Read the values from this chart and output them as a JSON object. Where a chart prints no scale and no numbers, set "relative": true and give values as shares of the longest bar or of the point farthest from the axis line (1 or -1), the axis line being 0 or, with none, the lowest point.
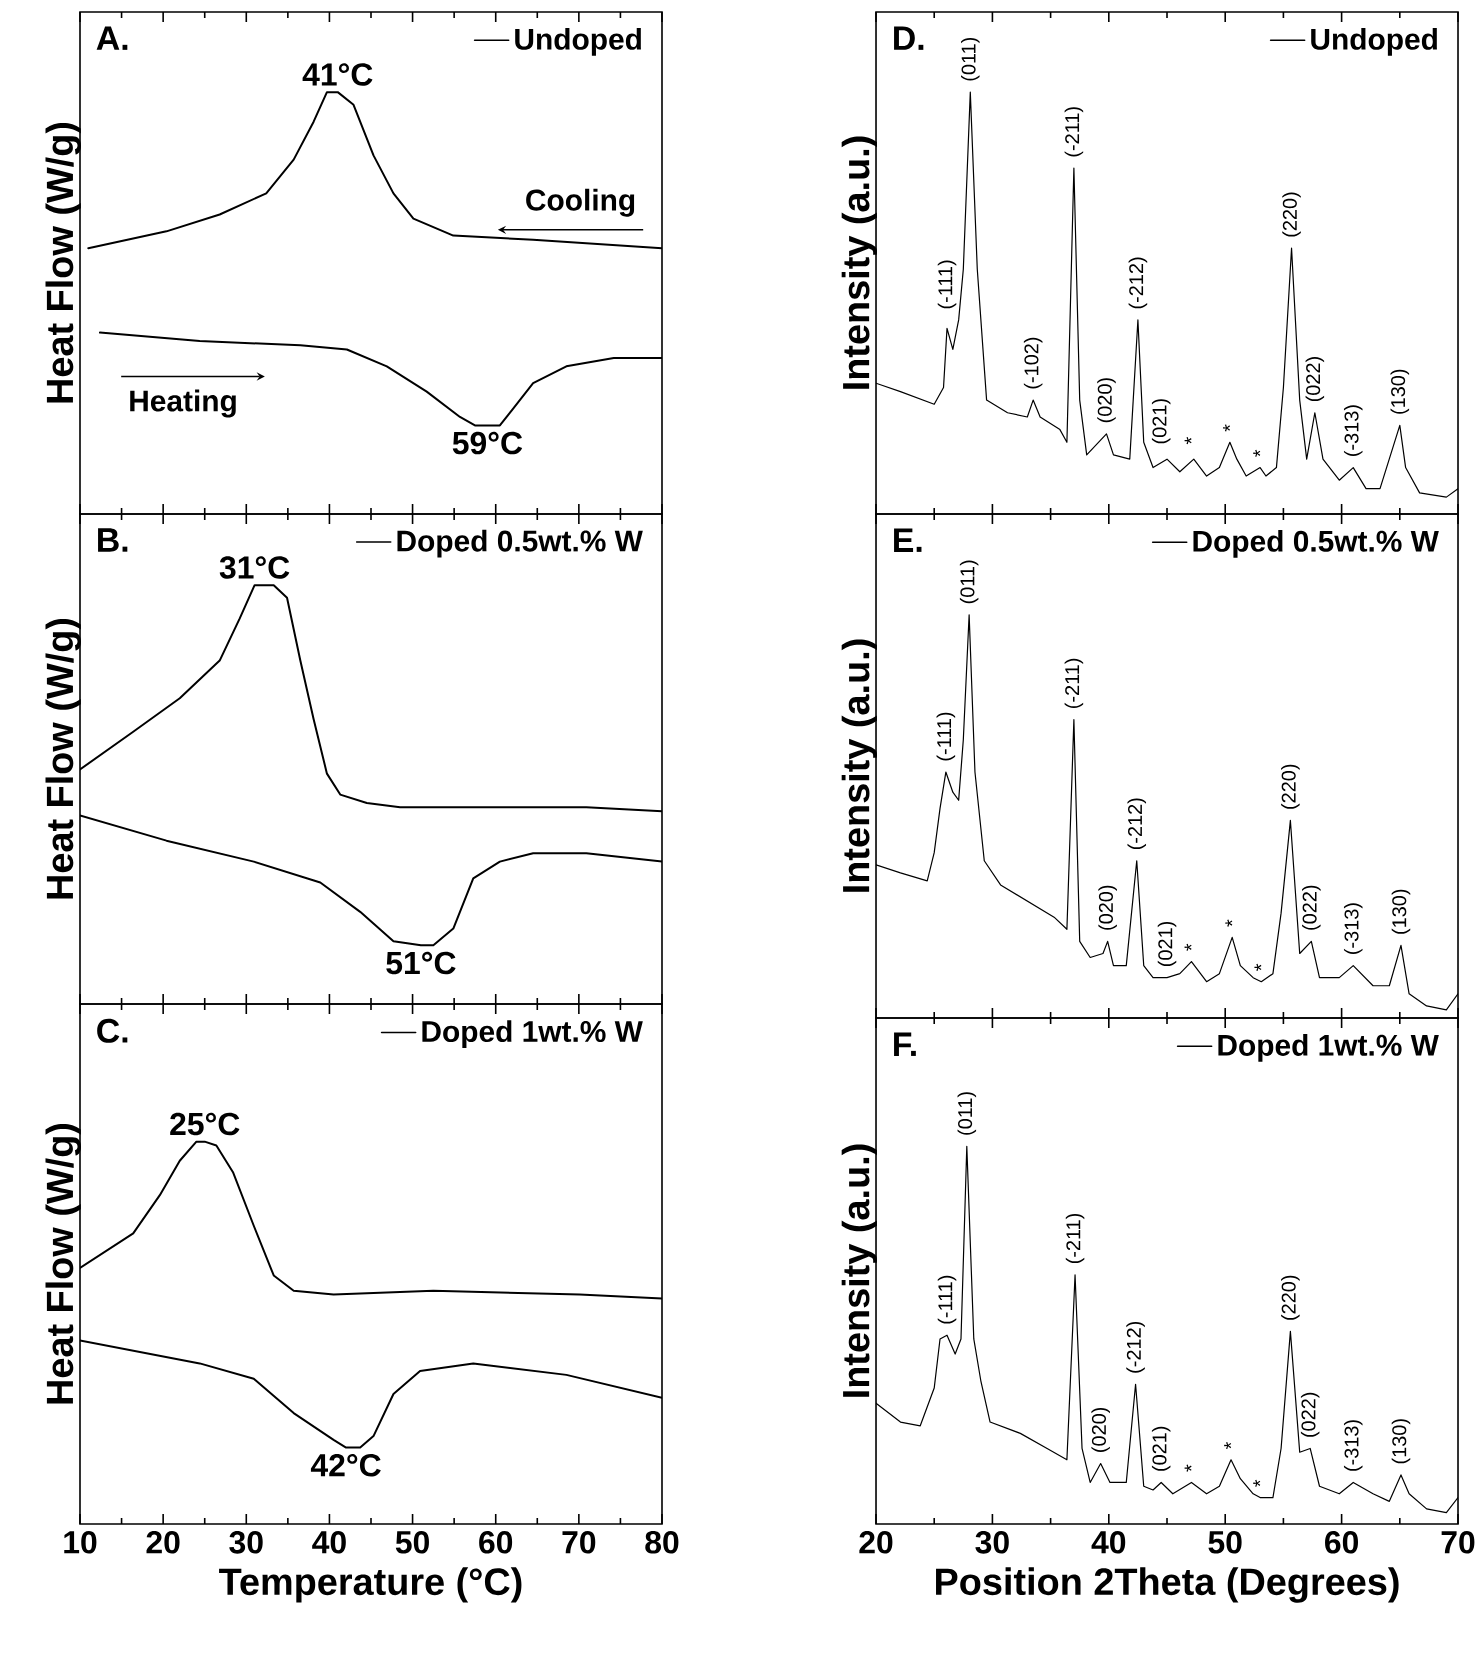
{
  "chart_data": [
    {
      "type": "line",
      "relative": true,
      "xlim": [
        10,
        80
      ],
      "xticks": [
        10,
        20,
        30,
        40,
        50,
        60,
        70,
        80
      ],
      "ylabel": "Heat Flow (W/g)",
      "tick_labels": false,
      "legend": "top right",
      "series": [
        {
          "name": "Undoped",
          "color": "#000000",
          "x": [
            11,
            20.4,
            26.8,
            32.4,
            35.7,
            38.1,
            39.7,
            41,
            42.9,
            45.3,
            47.7,
            50.1,
            54.9,
            64.5,
            80
          ],
          "values": [
            0.63,
            0.67,
            0.71,
            0.76,
            0.84,
            0.93,
            1.0,
            1.0,
            0.97,
            0.85,
            0.76,
            0.7,
            0.66,
            0.65,
            0.63
          ]
        },
        {
          "color": "#000000",
          "x": [
            12.4,
            24.4,
            36.5,
            42.1,
            46.9,
            51.7,
            55.7,
            57.5,
            59,
            60.5,
            62.1,
            64.5,
            68.5,
            74.2,
            80
          ],
          "values": [
            0.43,
            0.41,
            0.4,
            0.39,
            0.35,
            0.29,
            0.23,
            0.21,
            0.21,
            0.21,
            0.25,
            0.31,
            0.35,
            0.37,
            0.37
          ]
        }
      ],
      "annotations": [
        "A.",
        {
          "text": "41°C",
          "x": 41,
          "y": 1.0
        },
        {
          "text": "59°C",
          "x": 59,
          "y": 0.21
        },
        "Cooling",
        "Heating"
      ]
    },
    {
      "type": "line",
      "relative": true,
      "xlim": [
        10,
        80
      ],
      "xticks": [
        10,
        20,
        30,
        40,
        50,
        60,
        70,
        80
      ],
      "ylabel": "Heat Flow (W/g)",
      "tick_labels": false,
      "legend": "top right",
      "series": [
        {
          "name": "Doped 0.5wt.% W",
          "color": "#000000",
          "x": [
            10,
            16.4,
            22.0,
            26.8,
            29.2,
            31,
            33.3,
            34.9,
            36.5,
            38.1,
            39.7,
            41.3,
            44.5,
            48.5,
            70.9,
            80
          ],
          "values": [
            0.56,
            0.65,
            0.73,
            0.82,
            0.92,
            1.0,
            1.0,
            0.97,
            0.82,
            0.68,
            0.55,
            0.5,
            0.48,
            0.47,
            0.47,
            0.46
          ]
        },
        {
          "color": "#000000",
          "x": [
            10,
            20.4,
            30.9,
            38.9,
            43.7,
            47.7,
            51,
            52.5,
            54.9,
            57.3,
            60.5,
            64.5,
            70.9,
            80
          ],
          "values": [
            0.45,
            0.39,
            0.34,
            0.29,
            0.22,
            0.15,
            0.14,
            0.14,
            0.18,
            0.3,
            0.34,
            0.36,
            0.36,
            0.34
          ]
        }
      ],
      "annotations": [
        "B.",
        {
          "text": "31°C",
          "x": 31,
          "y": 1.0
        },
        {
          "text": "51°C",
          "x": 51,
          "y": 0.14
        }
      ]
    },
    {
      "type": "line",
      "relative": true,
      "xlim": [
        10,
        80
      ],
      "xticks": [
        10,
        20,
        30,
        40,
        50,
        60,
        70,
        80
      ],
      "xlabel": "Temperature (°C)",
      "ylabel": "Heat Flow (W/g)",
      "tick_labels": "x",
      "legend": "top right",
      "series": [
        {
          "name": "Doped 1wt.% W",
          "color": "#000000",
          "x": [
            10,
            16.4,
            19.6,
            22.0,
            24,
            25,
            26.4,
            28.4,
            30.9,
            33.3,
            35.7,
            40.5,
            52.5,
            70.1,
            80
          ],
          "values": [
            0.67,
            0.76,
            0.86,
            0.95,
            1.0,
            1.0,
            0.99,
            0.92,
            0.78,
            0.65,
            0.61,
            0.6,
            0.61,
            0.6,
            0.59
          ]
        },
        {
          "color": "#000000",
          "x": [
            10,
            24.4,
            30.9,
            35.7,
            40.5,
            42,
            43.7,
            45.3,
            47.7,
            50.9,
            57.3,
            68.5,
            80
          ],
          "values": [
            0.48,
            0.42,
            0.38,
            0.29,
            0.22,
            0.2,
            0.2,
            0.23,
            0.34,
            0.4,
            0.42,
            0.39,
            0.33
          ]
        }
      ],
      "annotations": [
        "C.",
        {
          "text": "25°C",
          "x": 25,
          "y": 1.0
        },
        {
          "text": "42°C",
          "x": 42,
          "y": 0.2
        }
      ]
    },
    {
      "type": "line",
      "relative": true,
      "xlim": [
        20,
        70
      ],
      "xticks": [
        20,
        30,
        40,
        50,
        60,
        70
      ],
      "ylabel": "Intensity (a.u.)",
      "tick_labels": false,
      "legend": "top right",
      "series": [
        {
          "name": "Undoped",
          "color": "#000000",
          "x": [
            20.0,
            22.1,
            25.0,
            25.8,
            26.1,
            26.6,
            27.1,
            27.5,
            28.1,
            28.7,
            29.5,
            31.3,
            33.0,
            33.5,
            34.1,
            35.8,
            36.4,
            37.0,
            37.5,
            38.1,
            39.8,
            40.4,
            41.8,
            42.5,
            43.0,
            43.8,
            45.0,
            46.1,
            47.3,
            48.4,
            49.5,
            50.4,
            51.0,
            51.8,
            53.0,
            53.5,
            54.4,
            55.0,
            55.7,
            56.4,
            57.0,
            57.7,
            58.4,
            59.8,
            61.0,
            62.1,
            63.3,
            65.0,
            65.5,
            66.7,
            69.0,
            70.0
          ],
          "values": [
            0.31,
            0.29,
            0.26,
            0.3,
            0.44,
            0.39,
            0.46,
            0.58,
            1.0,
            0.58,
            0.27,
            0.24,
            0.23,
            0.27,
            0.23,
            0.2,
            0.17,
            0.82,
            0.27,
            0.14,
            0.19,
            0.14,
            0.13,
            0.46,
            0.17,
            0.11,
            0.13,
            0.1,
            0.13,
            0.09,
            0.11,
            0.17,
            0.13,
            0.09,
            0.11,
            0.09,
            0.11,
            0.3,
            0.63,
            0.27,
            0.13,
            0.24,
            0.13,
            0.08,
            0.11,
            0.06,
            0.06,
            0.21,
            0.11,
            0.05,
            0.04,
            0.06
          ]
        }
      ],
      "annotations": [
        "D.",
        {
          "text": "(-111)",
          "x": 26.1,
          "y": 0.46
        },
        {
          "text": "(011)",
          "x": 28.1,
          "y": 1.0
        },
        {
          "text": "(-102)",
          "x": 33.5,
          "y": 0.27
        },
        {
          "text": "(-211)",
          "x": 37.0,
          "y": 0.82
        },
        {
          "text": "(020)",
          "x": 39.8,
          "y": 0.19
        },
        {
          "text": "(-212)",
          "x": 42.5,
          "y": 0.46
        },
        {
          "text": "(021)",
          "x": 44.5,
          "y": 0.14
        },
        {
          "text": "*",
          "x": 47.1,
          "y": 0.14
        },
        {
          "text": "*",
          "x": 50.4,
          "y": 0.17
        },
        {
          "text": "*",
          "x": 53.0,
          "y": 0.11
        },
        {
          "text": "(220)",
          "x": 55.7,
          "y": 0.63
        },
        {
          "text": "(022)",
          "x": 57.7,
          "y": 0.24
        },
        {
          "text": "(-313)",
          "x": 61.0,
          "y": 0.11
        },
        {
          "text": "(130)",
          "x": 65.0,
          "y": 0.21
        }
      ]
    },
    {
      "type": "line",
      "relative": true,
      "xlim": [
        20,
        70
      ],
      "xticks": [
        20,
        30,
        40,
        50,
        60,
        70
      ],
      "ylabel": "Intensity (a.u.)",
      "tick_labels": false,
      "legend": "top right",
      "series": [
        {
          "name": "Doped 0.5wt.% W",
          "color": "#000000",
          "x": [
            20.0,
            22.1,
            24.4,
            25.0,
            25.5,
            26.0,
            26.6,
            27.1,
            27.5,
            28.0,
            28.5,
            29.3,
            30.7,
            33.0,
            35.3,
            36.4,
            37.0,
            37.5,
            38.4,
            39.5,
            39.9,
            40.4,
            41.5,
            42.4,
            43.0,
            43.8,
            45.0,
            46.1,
            47.1,
            48.4,
            49.5,
            50.6,
            51.3,
            52.4,
            53.1,
            54.1,
            54.8,
            55.6,
            56.4,
            57.4,
            58.1,
            59.8,
            61.0,
            62.7,
            64.1,
            65.1,
            65.8,
            67.3,
            69.0,
            70.0
          ],
          "values": [
            0.38,
            0.36,
            0.34,
            0.41,
            0.52,
            0.61,
            0.56,
            0.54,
            0.69,
            1.0,
            0.61,
            0.39,
            0.33,
            0.29,
            0.25,
            0.22,
            0.74,
            0.19,
            0.15,
            0.16,
            0.19,
            0.13,
            0.13,
            0.39,
            0.13,
            0.1,
            0.1,
            0.11,
            0.14,
            0.09,
            0.11,
            0.2,
            0.13,
            0.1,
            0.09,
            0.11,
            0.26,
            0.49,
            0.16,
            0.19,
            0.1,
            0.1,
            0.13,
            0.08,
            0.08,
            0.18,
            0.06,
            0.03,
            0.02,
            0.06
          ]
        }
      ],
      "annotations": [
        "E.",
        {
          "text": "(-111)",
          "x": 26.0,
          "y": 0.61
        },
        {
          "text": "(011)",
          "x": 28.0,
          "y": 1.0
        },
        {
          "text": "(-211)",
          "x": 37.0,
          "y": 0.74
        },
        {
          "text": "(020)",
          "x": 39.9,
          "y": 0.19
        },
        {
          "text": "(-212)",
          "x": 42.4,
          "y": 0.39
        },
        {
          "text": "(021)",
          "x": 45.0,
          "y": 0.1
        },
        {
          "text": "*",
          "x": 47.1,
          "y": 0.14
        },
        {
          "text": "*",
          "x": 50.6,
          "y": 0.2
        },
        {
          "text": "*",
          "x": 53.1,
          "y": 0.09
        },
        {
          "text": "(220)",
          "x": 55.6,
          "y": 0.49
        },
        {
          "text": "(022)",
          "x": 57.4,
          "y": 0.19
        },
        {
          "text": "(-313)",
          "x": 61.0,
          "y": 0.13
        },
        {
          "text": "(130)",
          "x": 65.1,
          "y": 0.18
        }
      ]
    },
    {
      "type": "line",
      "relative": true,
      "xlim": [
        20,
        70
      ],
      "xticks": [
        20,
        30,
        40,
        50,
        60,
        70
      ],
      "xlabel": "Position 2Theta (Degrees)",
      "ylabel": "Intensity (a.u.)",
      "tick_labels": "x",
      "legend": "top right",
      "series": [
        {
          "name": "Doped 1wt.% W",
          "color": "#000000",
          "x": [
            20.0,
            22.1,
            23.8,
            25.0,
            25.5,
            26.1,
            26.8,
            27.3,
            27.8,
            28.4,
            29.0,
            29.8,
            32.4,
            34.7,
            36.4,
            37.1,
            37.7,
            38.4,
            39.3,
            40.1,
            41.5,
            42.3,
            43.0,
            43.8,
            44.5,
            45.5,
            47.1,
            48.4,
            49.5,
            50.5,
            51.3,
            52.4,
            53.0,
            54.1,
            54.8,
            55.6,
            56.4,
            57.3,
            58.1,
            59.8,
            61.0,
            62.7,
            64.1,
            65.1,
            65.8,
            67.3,
            69.0,
            70.0
          ],
          "values": [
            0.32,
            0.27,
            0.26,
            0.36,
            0.49,
            0.5,
            0.45,
            0.49,
            1.0,
            0.49,
            0.38,
            0.27,
            0.24,
            0.2,
            0.17,
            0.66,
            0.2,
            0.11,
            0.16,
            0.11,
            0.11,
            0.37,
            0.1,
            0.09,
            0.11,
            0.08,
            0.11,
            0.08,
            0.1,
            0.17,
            0.12,
            0.08,
            0.07,
            0.07,
            0.2,
            0.51,
            0.19,
            0.2,
            0.1,
            0.08,
            0.11,
            0.08,
            0.06,
            0.13,
            0.08,
            0.04,
            0.03,
            0.07
          ]
        }
      ],
      "annotations": [
        "F.",
        {
          "text": "(-111)",
          "x": 26.1,
          "y": 0.5
        },
        {
          "text": "(011)",
          "x": 27.8,
          "y": 1.0
        },
        {
          "text": "(-211)",
          "x": 37.1,
          "y": 0.66
        },
        {
          "text": "(020)",
          "x": 39.3,
          "y": 0.16
        },
        {
          "text": "(-212)",
          "x": 42.3,
          "y": 0.37
        },
        {
          "text": "(021)",
          "x": 44.5,
          "y": 0.11
        },
        {
          "text": "*",
          "x": 47.1,
          "y": 0.11
        },
        {
          "text": "*",
          "x": 50.5,
          "y": 0.17
        },
        {
          "text": "*",
          "x": 53.0,
          "y": 0.07
        },
        {
          "text": "(220)",
          "x": 55.6,
          "y": 0.51
        },
        {
          "text": "(022)",
          "x": 57.3,
          "y": 0.2
        },
        {
          "text": "(-313)",
          "x": 61.0,
          "y": 0.11
        },
        {
          "text": "(130)",
          "x": 65.1,
          "y": 0.13
        }
      ]
    }
  ]
}
